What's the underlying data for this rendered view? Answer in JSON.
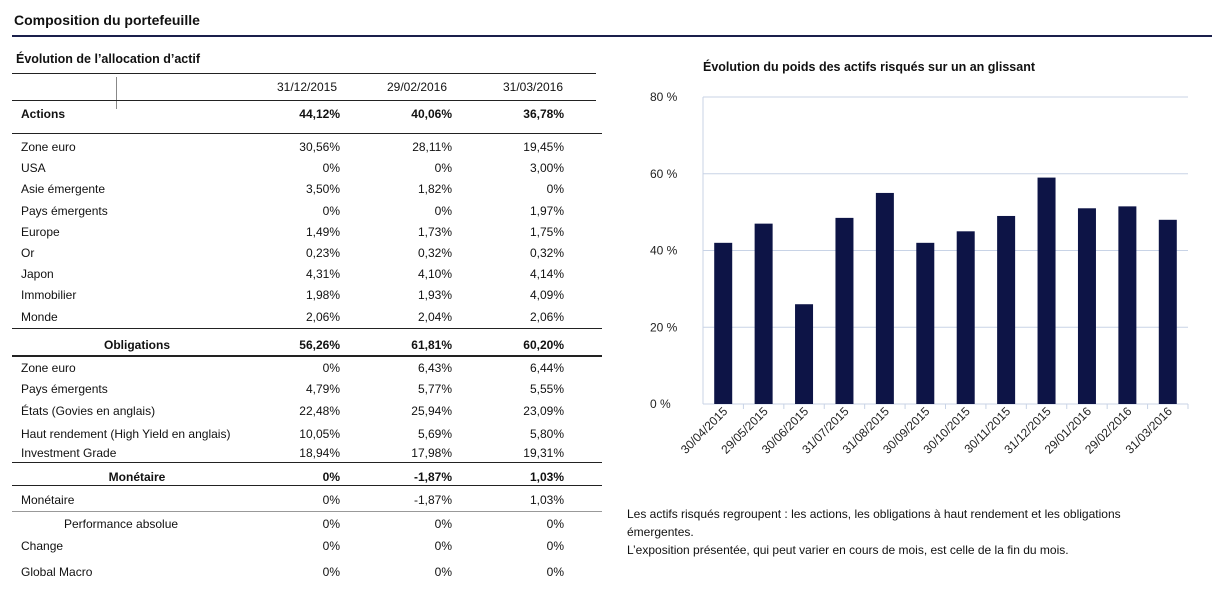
{
  "title": "Composition du portefeuille",
  "table": {
    "title": "Évolution de l’allocation d’actif",
    "columns": [
      "31/12/2015",
      "29/02/2016",
      "31/03/2016"
    ],
    "rows": [
      {
        "label": "Actions",
        "values": [
          "44,12%",
          "40,06%",
          "36,78%"
        ]
      },
      {
        "label": "Zone euro",
        "values": [
          "30,56%",
          "28,11%",
          "19,45%"
        ]
      },
      {
        "label": "USA",
        "values": [
          "0%",
          "0%",
          "3,00%"
        ]
      },
      {
        "label": "Asie émergente",
        "values": [
          "3,50%",
          "1,82%",
          "0%"
        ]
      },
      {
        "label": "Pays émergents",
        "values": [
          "0%",
          "0%",
          "1,97%"
        ]
      },
      {
        "label": "Europe",
        "values": [
          "1,49%",
          "1,73%",
          "1,75%"
        ]
      },
      {
        "label": "Or",
        "values": [
          "0,23%",
          "0,32%",
          "0,32%"
        ]
      },
      {
        "label": "Japon",
        "values": [
          "4,31%",
          "4,10%",
          "4,14%"
        ]
      },
      {
        "label": "Immobilier",
        "values": [
          "1,98%",
          "1,93%",
          "4,09%"
        ]
      },
      {
        "label": "Monde",
        "values": [
          "2,06%",
          "2,04%",
          "2,06%"
        ]
      },
      {
        "label": "Obligations",
        "values": [
          "56,26%",
          "61,81%",
          "60,20%"
        ]
      },
      {
        "label": "Zone euro",
        "values": [
          "0%",
          "6,43%",
          "6,44%"
        ]
      },
      {
        "label": "Pays émergents",
        "values": [
          "4,79%",
          "5,77%",
          "5,55%"
        ]
      },
      {
        "label": "États (Govies en anglais)",
        "values": [
          "22,48%",
          "25,94%",
          "23,09%"
        ]
      },
      {
        "label": "Haut rendement (High Yield en anglais)",
        "values": [
          "10,05%",
          "5,69%",
          "5,80%"
        ]
      },
      {
        "label": "Investment Grade",
        "values": [
          "18,94%",
          "17,98%",
          "19,31%"
        ]
      },
      {
        "label": "Monétaire",
        "values": [
          "0%",
          "-1,87%",
          "1,03%"
        ]
      },
      {
        "label": "Monétaire",
        "values": [
          "0%",
          "-1,87%",
          "1,03%"
        ]
      },
      {
        "label": "Performance  absolue",
        "values": [
          "0%",
          "0%",
          "0%"
        ]
      },
      {
        "label": "Change",
        "values": [
          "0%",
          "0%",
          "0%"
        ]
      },
      {
        "label": "Global Macro",
        "values": [
          "0%",
          "0%",
          "0%"
        ]
      }
    ]
  },
  "chart_data": {
    "type": "bar",
    "title": "Évolution du poids des actifs risqués sur un an glissant",
    "categories": [
      "30/04/2015",
      "29/05/2015",
      "30/06/2015",
      "31/07/2015",
      "31/08/2015",
      "30/09/2015",
      "30/10/2015",
      "30/11/2015",
      "31/12/2015",
      "29/01/2016",
      "29/02/2016",
      "31/03/2016"
    ],
    "values": [
      42,
      47,
      26,
      48.5,
      55,
      42,
      45,
      49,
      59,
      51,
      51.5,
      48
    ],
    "ylim": [
      0,
      80
    ],
    "yticks": [
      "0 %",
      "20 %",
      "40 %",
      "60 %",
      "80 %"
    ],
    "bar_color": "#0d1446",
    "grid": true,
    "xlabel": "",
    "ylabel": ""
  },
  "note": {
    "line1": "Les actifs risqués regroupent : les actions, les obligations à haut rendement et les obligations émergentes.",
    "line2": "L’exposition présentée, qui peut varier en cours de mois, est celle de la fin du mois."
  }
}
